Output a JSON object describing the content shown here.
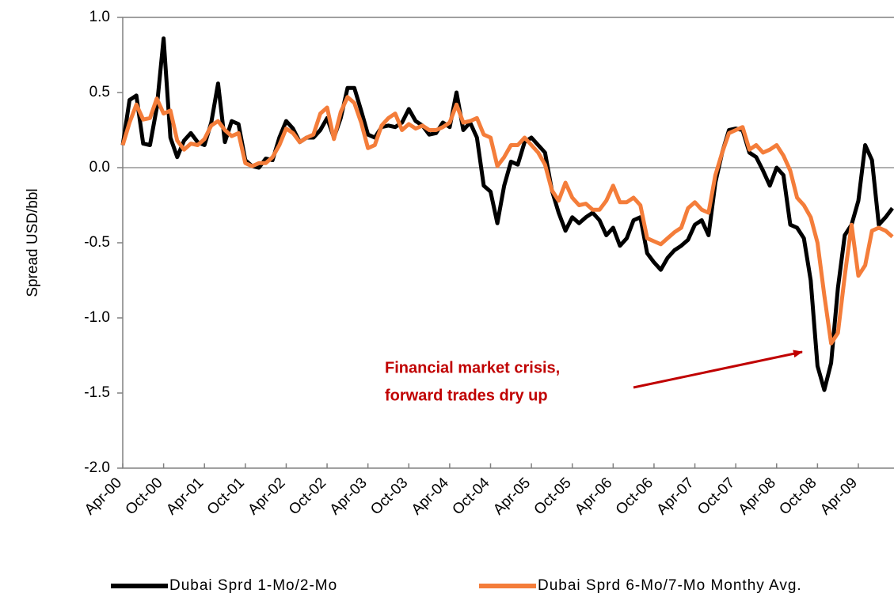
{
  "chart_data": {
    "type": "line",
    "y_label": "Spread USD/bbl",
    "annotation": [
      "Financial market crisis,",
      "forward trades dry up"
    ],
    "categories": [
      "Apr-00",
      null,
      null,
      null,
      null,
      null,
      "Oct-00",
      null,
      null,
      null,
      null,
      null,
      "Apr-01",
      null,
      null,
      null,
      null,
      null,
      "Oct-01",
      null,
      null,
      null,
      null,
      null,
      "Apr-02",
      null,
      null,
      null,
      null,
      null,
      "Oct-02",
      null,
      null,
      null,
      null,
      null,
      "Apr-03",
      null,
      null,
      null,
      null,
      null,
      "Oct-03",
      null,
      null,
      null,
      null,
      null,
      "Apr-04",
      null,
      null,
      null,
      null,
      null,
      "Oct-04",
      null,
      null,
      null,
      null,
      null,
      "Apr-05",
      null,
      null,
      null,
      null,
      null,
      "Oct-05",
      null,
      null,
      null,
      null,
      null,
      "Apr-06",
      null,
      null,
      null,
      null,
      null,
      "Oct-06",
      null,
      null,
      null,
      null,
      null,
      "Apr-07",
      null,
      null,
      null,
      null,
      null,
      "Oct-07",
      null,
      null,
      null,
      null,
      null,
      "Apr-08",
      null,
      null,
      null,
      null,
      null,
      "Oct-08",
      null,
      null,
      null,
      null,
      null,
      "Apr-09",
      null,
      null,
      null,
      null,
      null
    ],
    "series": [
      {
        "name": "Dubai Sprd 1-Mo/2-Mo",
        "color": "#000000",
        "values": [
          0.15,
          0.45,
          0.48,
          0.16,
          0.15,
          0.4,
          0.86,
          0.2,
          0.07,
          0.18,
          0.23,
          0.17,
          0.15,
          0.3,
          0.56,
          0.17,
          0.31,
          0.29,
          0.05,
          0.01,
          0,
          0.06,
          0.05,
          0.2,
          0.31,
          0.26,
          0.17,
          0.2,
          0.2,
          0.25,
          0.33,
          0.2,
          0.33,
          0.53,
          0.53,
          0.38,
          0.22,
          0.2,
          0.27,
          0.28,
          0.27,
          0.3,
          0.39,
          0.31,
          0.28,
          0.22,
          0.23,
          0.3,
          0.27,
          0.5,
          0.25,
          0.3,
          0.2,
          -0.12,
          -0.16,
          -0.37,
          -0.12,
          0.04,
          0.02,
          0.17,
          0.2,
          0.15,
          0.1,
          -0.15,
          -0.3,
          -0.42,
          -0.33,
          -0.37,
          -0.33,
          -0.3,
          -0.35,
          -0.45,
          -0.4,
          -0.52,
          -0.47,
          -0.35,
          -0.33,
          -0.57,
          -0.63,
          -0.68,
          -0.6,
          -0.55,
          -0.52,
          -0.48,
          -0.38,
          -0.35,
          -0.45,
          -0.1,
          0.1,
          0.25,
          0.26,
          0.25,
          0.1,
          0.07,
          -0.02,
          -0.12,
          0,
          -0.05,
          -0.38,
          -0.4,
          -0.47,
          -0.75,
          -1.32,
          -1.48,
          -1.3,
          -0.8,
          -0.45,
          -0.38,
          -0.22,
          0.15,
          0.05,
          -0.38,
          -0.33,
          -0.27
        ]
      },
      {
        "name": "Dubai Sprd 6-Mo/7-Mo Monthy Avg.",
        "color": "#f47d3a",
        "values": [
          0.15,
          0.3,
          0.42,
          0.32,
          0.33,
          0.46,
          0.36,
          0.38,
          0.18,
          0.12,
          0.16,
          0.15,
          0.19,
          0.28,
          0.31,
          0.25,
          0.21,
          0.23,
          0.03,
          0.01,
          0.03,
          0.03,
          0.07,
          0.15,
          0.26,
          0.23,
          0.17,
          0.2,
          0.22,
          0.36,
          0.4,
          0.19,
          0.37,
          0.47,
          0.43,
          0.3,
          0.13,
          0.15,
          0.28,
          0.33,
          0.36,
          0.25,
          0.29,
          0.26,
          0.28,
          0.25,
          0.25,
          0.27,
          0.3,
          0.42,
          0.3,
          0.31,
          0.33,
          0.22,
          0.2,
          0.01,
          0.07,
          0.15,
          0.15,
          0.2,
          0.15,
          0.1,
          0.02,
          -0.15,
          -0.22,
          -0.1,
          -0.2,
          -0.25,
          -0.24,
          -0.28,
          -0.28,
          -0.22,
          -0.12,
          -0.23,
          -0.23,
          -0.2,
          -0.25,
          -0.47,
          -0.49,
          -0.51,
          -0.47,
          -0.43,
          -0.4,
          -0.27,
          -0.23,
          -0.28,
          -0.3,
          -0.05,
          0.1,
          0.23,
          0.25,
          0.27,
          0.12,
          0.15,
          0.1,
          0.12,
          0.15,
          0.08,
          -0.02,
          -0.2,
          -0.25,
          -0.33,
          -0.5,
          -0.85,
          -1.17,
          -1.1,
          -0.72,
          -0.38,
          -0.72,
          -0.65,
          -0.42,
          -0.4,
          -0.42,
          -0.46
        ]
      }
    ],
    "ylim": [
      -2,
      1
    ],
    "yticks": [
      {
        "value": -2,
        "label": "-2.0"
      },
      {
        "value": -1.5,
        "label": "-1.5"
      },
      {
        "value": -1,
        "label": "-1.0"
      },
      {
        "value": -0.5,
        "label": "-0.5"
      },
      {
        "value": 0,
        "label": "0.0"
      },
      {
        "value": 0.5,
        "label": "0.5"
      },
      {
        "value": 1,
        "label": "1.0"
      }
    ],
    "grid": false,
    "legend": "bottom"
  }
}
